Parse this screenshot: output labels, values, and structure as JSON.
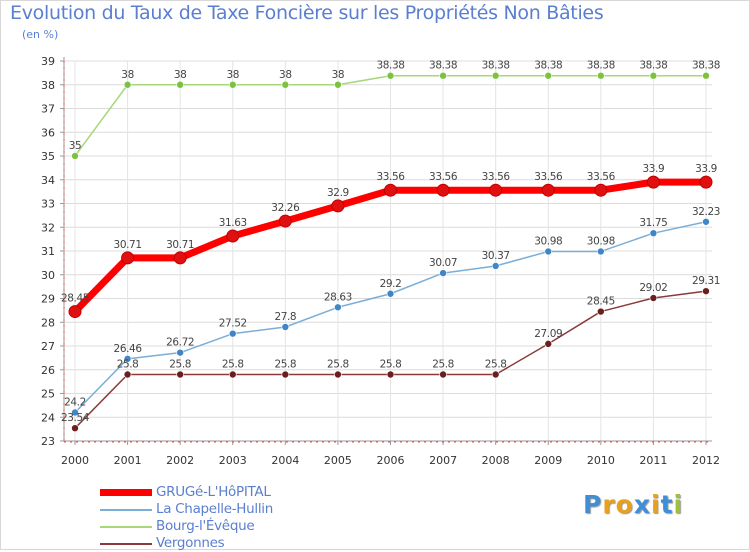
{
  "title": "Evolution du Taux de Taxe Foncière sur les Propriétés Non Bâties",
  "unit": "(en %)",
  "logo": {
    "letters": [
      "P",
      "r",
      "o",
      "x",
      "i",
      "t",
      "i"
    ],
    "colors": [
      "#3f8ed6",
      "#e8a020",
      "#e8a020",
      "#3f8ed6",
      "#e8a020",
      "#3f8ed6",
      "#9ac23c"
    ]
  },
  "chart_data": {
    "type": "line",
    "title": "Evolution du Taux de Taxe Foncière sur les Propriétés Non Bâties",
    "ylabel": "(en %)",
    "x": [
      "2000",
      "2001",
      "2002",
      "2003",
      "2004",
      "2005",
      "2006",
      "2007",
      "2008",
      "2009",
      "2010",
      "2011",
      "2012"
    ],
    "yticks": [
      23,
      24,
      25,
      26,
      27,
      28,
      29,
      30,
      31,
      32,
      33,
      34,
      35,
      36,
      37,
      38,
      39
    ],
    "ylim": [
      23,
      39
    ],
    "series": [
      {
        "name": "GRUGé-L'HôPITAL",
        "color": "#ff0000",
        "marker": "#e01010",
        "width": 7,
        "radius": 6,
        "values": [
          28.45,
          30.71,
          30.71,
          31.63,
          32.26,
          32.9,
          33.56,
          33.56,
          33.56,
          33.56,
          33.56,
          33.9,
          33.9
        ],
        "labels": [
          "28.45",
          "30.71",
          "30.71",
          "31.63",
          "32.26",
          "32.9",
          "33.56",
          "33.56",
          "33.56",
          "33.56",
          "33.56",
          "33.9",
          "33.9"
        ]
      },
      {
        "name": "La Chapelle-Hullin",
        "color": "#7aaed8",
        "marker": "#3f86c8",
        "width": 1.5,
        "radius": 3.5,
        "values": [
          24.2,
          26.46,
          26.72,
          27.52,
          27.8,
          28.63,
          29.2,
          30.07,
          30.37,
          30.98,
          30.98,
          31.75,
          32.23
        ],
        "labels": [
          "24.2",
          "26.46",
          "26.72",
          "27.52",
          "27.8",
          "28.63",
          "29.2",
          "30.07",
          "30.37",
          "30.98",
          "30.98",
          "31.75",
          "32.23"
        ]
      },
      {
        "name": "Bourg-l'Évêque",
        "color": "#a6d87a",
        "marker": "#7cc23e",
        "width": 1.5,
        "radius": 3.5,
        "values": [
          35,
          38,
          38,
          38,
          38,
          38,
          38.38,
          38.38,
          38.38,
          38.38,
          38.38,
          38.38,
          38.38
        ],
        "labels": [
          "35",
          "38",
          "38",
          "38",
          "38",
          "38",
          "38.38",
          "38.38",
          "38.38",
          "38.38",
          "38.38",
          "38.38",
          "38.38"
        ]
      },
      {
        "name": "Vergonnes",
        "color": "#8a3a3a",
        "marker": "#6a1f1f",
        "width": 1.5,
        "radius": 3.5,
        "values": [
          23.54,
          25.8,
          25.8,
          25.8,
          25.8,
          25.8,
          25.8,
          25.8,
          25.8,
          27.09,
          28.45,
          29.02,
          29.31
        ],
        "labels": [
          "23.54",
          "25.8",
          "25.8",
          "25.8",
          "25.8",
          "25.8",
          "25.8",
          "25.8",
          "25.8",
          "27.09",
          "28.45",
          "29.02",
          "29.31"
        ]
      }
    ]
  }
}
